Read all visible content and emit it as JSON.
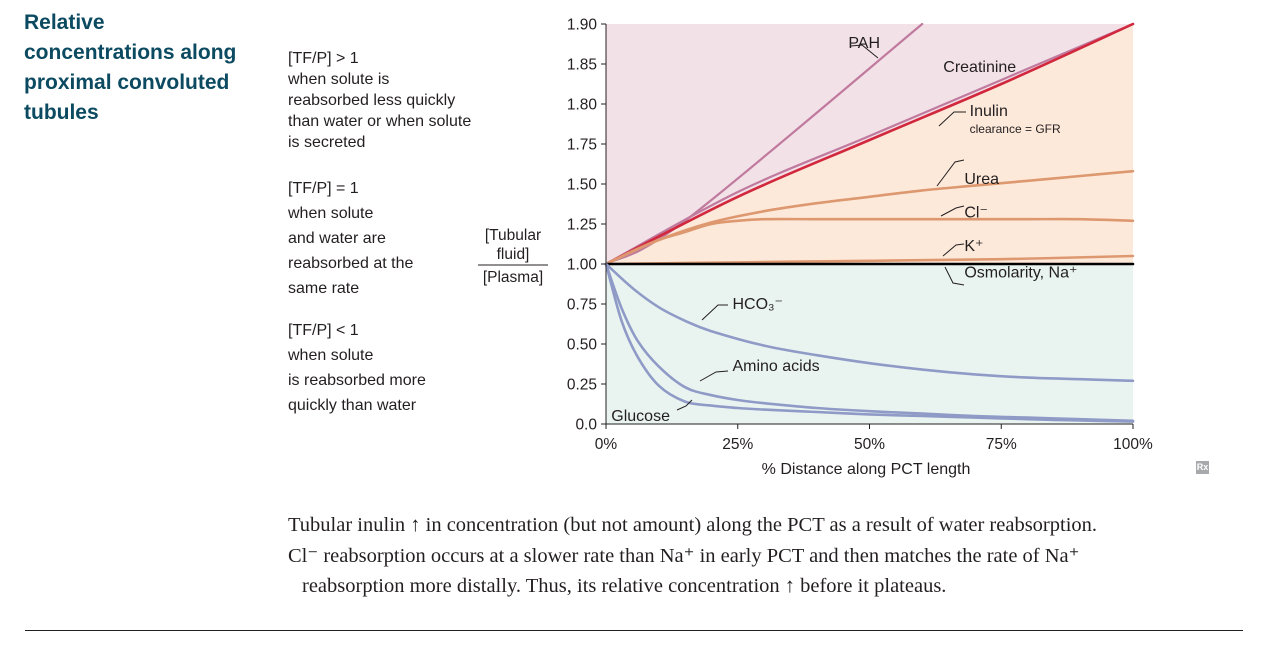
{
  "heading": {
    "lines": [
      "Relative",
      "concentrations along",
      "proximal convoluted",
      "tubules"
    ]
  },
  "annotations": {
    "greater": [
      "[TF/P] > 1",
      "when solute is",
      "reabsorbed less quickly",
      "than water or when solute",
      "is secreted"
    ],
    "equal": [
      "[TF/P] = 1",
      "when solute",
      "and water are",
      "reabsorbed at the",
      "same rate"
    ],
    "less": [
      "[TF/P] < 1",
      "when solute",
      "is reabsorbed more",
      "quickly than water"
    ]
  },
  "caption": {
    "line1": "Tubular inulin ↑ in concentration (but not amount) along the PCT as a result of water reabsorption.",
    "line2": "Cl⁻ reabsorption occurs at a slower rate than Na⁺ in early PCT and then matches the rate of Na⁺",
    "line3": "reabsorption more distally. Thus, its relative concentration ↑ before it plateaus."
  },
  "icons": {
    "rx": "Rx"
  },
  "colors": {
    "upper_region": "#f3e1e8",
    "middle_region": "#fde9da",
    "lower_region": "#e9f4f1",
    "pah": "#c07a9e",
    "creatinine": "#c07a9e",
    "inulin": "#d1283e",
    "orange_series": "#dd9870",
    "reference_line": "#000000",
    "blue_series": "#8f9bc6"
  },
  "chart_data": {
    "type": "line",
    "title": "",
    "xlabel": "% Distance along PCT length",
    "ylabel": "[Tubular fluid] / [Plasma]",
    "ylabel_numerator": [
      "[Tubular",
      "fluid]"
    ],
    "ylabel_denominator": "[Plasma]",
    "xlim": [
      0,
      100
    ],
    "ylim_ticks": [
      "0.0",
      "0.25",
      "0.50",
      "0.75",
      "1.00",
      "1.25",
      "1.50",
      "1.75",
      "1.80",
      "1.85",
      "1.90"
    ],
    "x_ticks": [
      0,
      25,
      50,
      75,
      100
    ],
    "x_tick_labels": [
      "0%",
      "25%",
      "50%",
      "75%",
      "100%"
    ],
    "y_tick_values": [
      0,
      0.25,
      0.5,
      0.75,
      1.0,
      1.25,
      1.5,
      1.75,
      1.8,
      1.85,
      1.9
    ],
    "y_tick_labels": [
      "0.0",
      "0.25",
      "0.50",
      "0.75",
      "1.00",
      "1.25",
      "1.50",
      "1.75",
      "1.80",
      "1.85",
      "1.90"
    ],
    "scale_note": "non-linear y-axis: evenly spaced tick labels",
    "grid": false,
    "legend": "inline labels",
    "series": [
      {
        "name": "PAH",
        "color": "#c07a9e",
        "width": 2.2,
        "x": [
          0,
          15,
          60
        ],
        "y": [
          1.0,
          1.27,
          1.9
        ],
        "label": "PAH",
        "label_x": 52,
        "label_y": 1.87
      },
      {
        "name": "Creatinine",
        "color": "#c07a9e",
        "width": 2.2,
        "x": [
          0,
          25,
          50,
          75,
          100
        ],
        "y": [
          1.0,
          1.45,
          1.76,
          1.83,
          1.9
        ],
        "label": "Creatinine",
        "label_x": 64,
        "label_y": 1.84
      },
      {
        "name": "Inulin",
        "color": "#d1283e",
        "width": 2.6,
        "x": [
          0,
          25,
          50,
          75,
          100
        ],
        "y": [
          1.0,
          1.42,
          1.755,
          1.825,
          1.9
        ],
        "label": "Inulin",
        "label_x": 69,
        "label_y": 1.785,
        "sublabel": "clearance = GFR"
      },
      {
        "name": "Urea",
        "color": "#dd9870",
        "width": 2.6,
        "x": [
          0,
          10,
          20,
          30,
          40,
          50,
          60,
          70,
          80,
          90,
          100
        ],
        "y": [
          1.0,
          1.15,
          1.26,
          1.33,
          1.38,
          1.42,
          1.46,
          1.49,
          1.52,
          1.55,
          1.58
        ],
        "label": "Urea",
        "label_x": 68,
        "label_y": 1.5
      },
      {
        "name": "Cl⁻",
        "color": "#dd9870",
        "width": 2.6,
        "x": [
          0,
          5,
          10,
          15,
          20,
          25,
          30,
          40,
          50,
          60,
          70,
          80,
          90,
          100
        ],
        "y": [
          1.0,
          1.08,
          1.15,
          1.2,
          1.25,
          1.27,
          1.28,
          1.28,
          1.28,
          1.28,
          1.28,
          1.28,
          1.28,
          1.27
        ],
        "label": "Cl⁻",
        "label_x": 68,
        "label_y": 1.29
      },
      {
        "name": "K⁺",
        "color": "#dd9870",
        "width": 2.6,
        "x": [
          0,
          25,
          50,
          75,
          100
        ],
        "y": [
          1.0,
          1.01,
          1.02,
          1.03,
          1.05
        ],
        "label": "K⁺",
        "label_x": 68,
        "label_y": 1.08
      },
      {
        "name": "Osmolarity, Na⁺",
        "color": "#000000",
        "width": 2.6,
        "x": [
          0,
          100
        ],
        "y": [
          1.0,
          1.0
        ],
        "label": "Osmolarity, Na⁺",
        "label_x": 68,
        "label_y": 0.915
      },
      {
        "name": "HCO₃⁻",
        "color": "#8f9bc6",
        "width": 2.6,
        "x": [
          0,
          5,
          10,
          15,
          20,
          30,
          40,
          50,
          60,
          70,
          80,
          90,
          100
        ],
        "y": [
          1.0,
          0.85,
          0.73,
          0.645,
          0.58,
          0.49,
          0.43,
          0.38,
          0.34,
          0.31,
          0.29,
          0.28,
          0.27
        ],
        "label": "HCO₃⁻",
        "label_x": 24,
        "label_y": 0.72
      },
      {
        "name": "Amino acids",
        "color": "#8f9bc6",
        "width": 2.6,
        "x": [
          0,
          3,
          6,
          10,
          15,
          20,
          25,
          30,
          40,
          50,
          60,
          70,
          80,
          90,
          100
        ],
        "y": [
          1.0,
          0.72,
          0.52,
          0.36,
          0.23,
          0.18,
          0.15,
          0.13,
          0.1,
          0.08,
          0.065,
          0.05,
          0.04,
          0.03,
          0.02
        ],
        "label": "Amino acids",
        "label_x": 24,
        "label_y": 0.33
      },
      {
        "name": "Glucose",
        "color": "#8f9bc6",
        "width": 2.6,
        "x": [
          0,
          3,
          6,
          10,
          15,
          20,
          25,
          30,
          40,
          50,
          60,
          70,
          80,
          90,
          100
        ],
        "y": [
          1.0,
          0.64,
          0.42,
          0.24,
          0.14,
          0.115,
          0.1,
          0.09,
          0.075,
          0.06,
          0.05,
          0.04,
          0.03,
          0.022,
          0.015
        ],
        "label": "Glucose",
        "label_x": 1,
        "label_y": 0.02
      }
    ]
  }
}
